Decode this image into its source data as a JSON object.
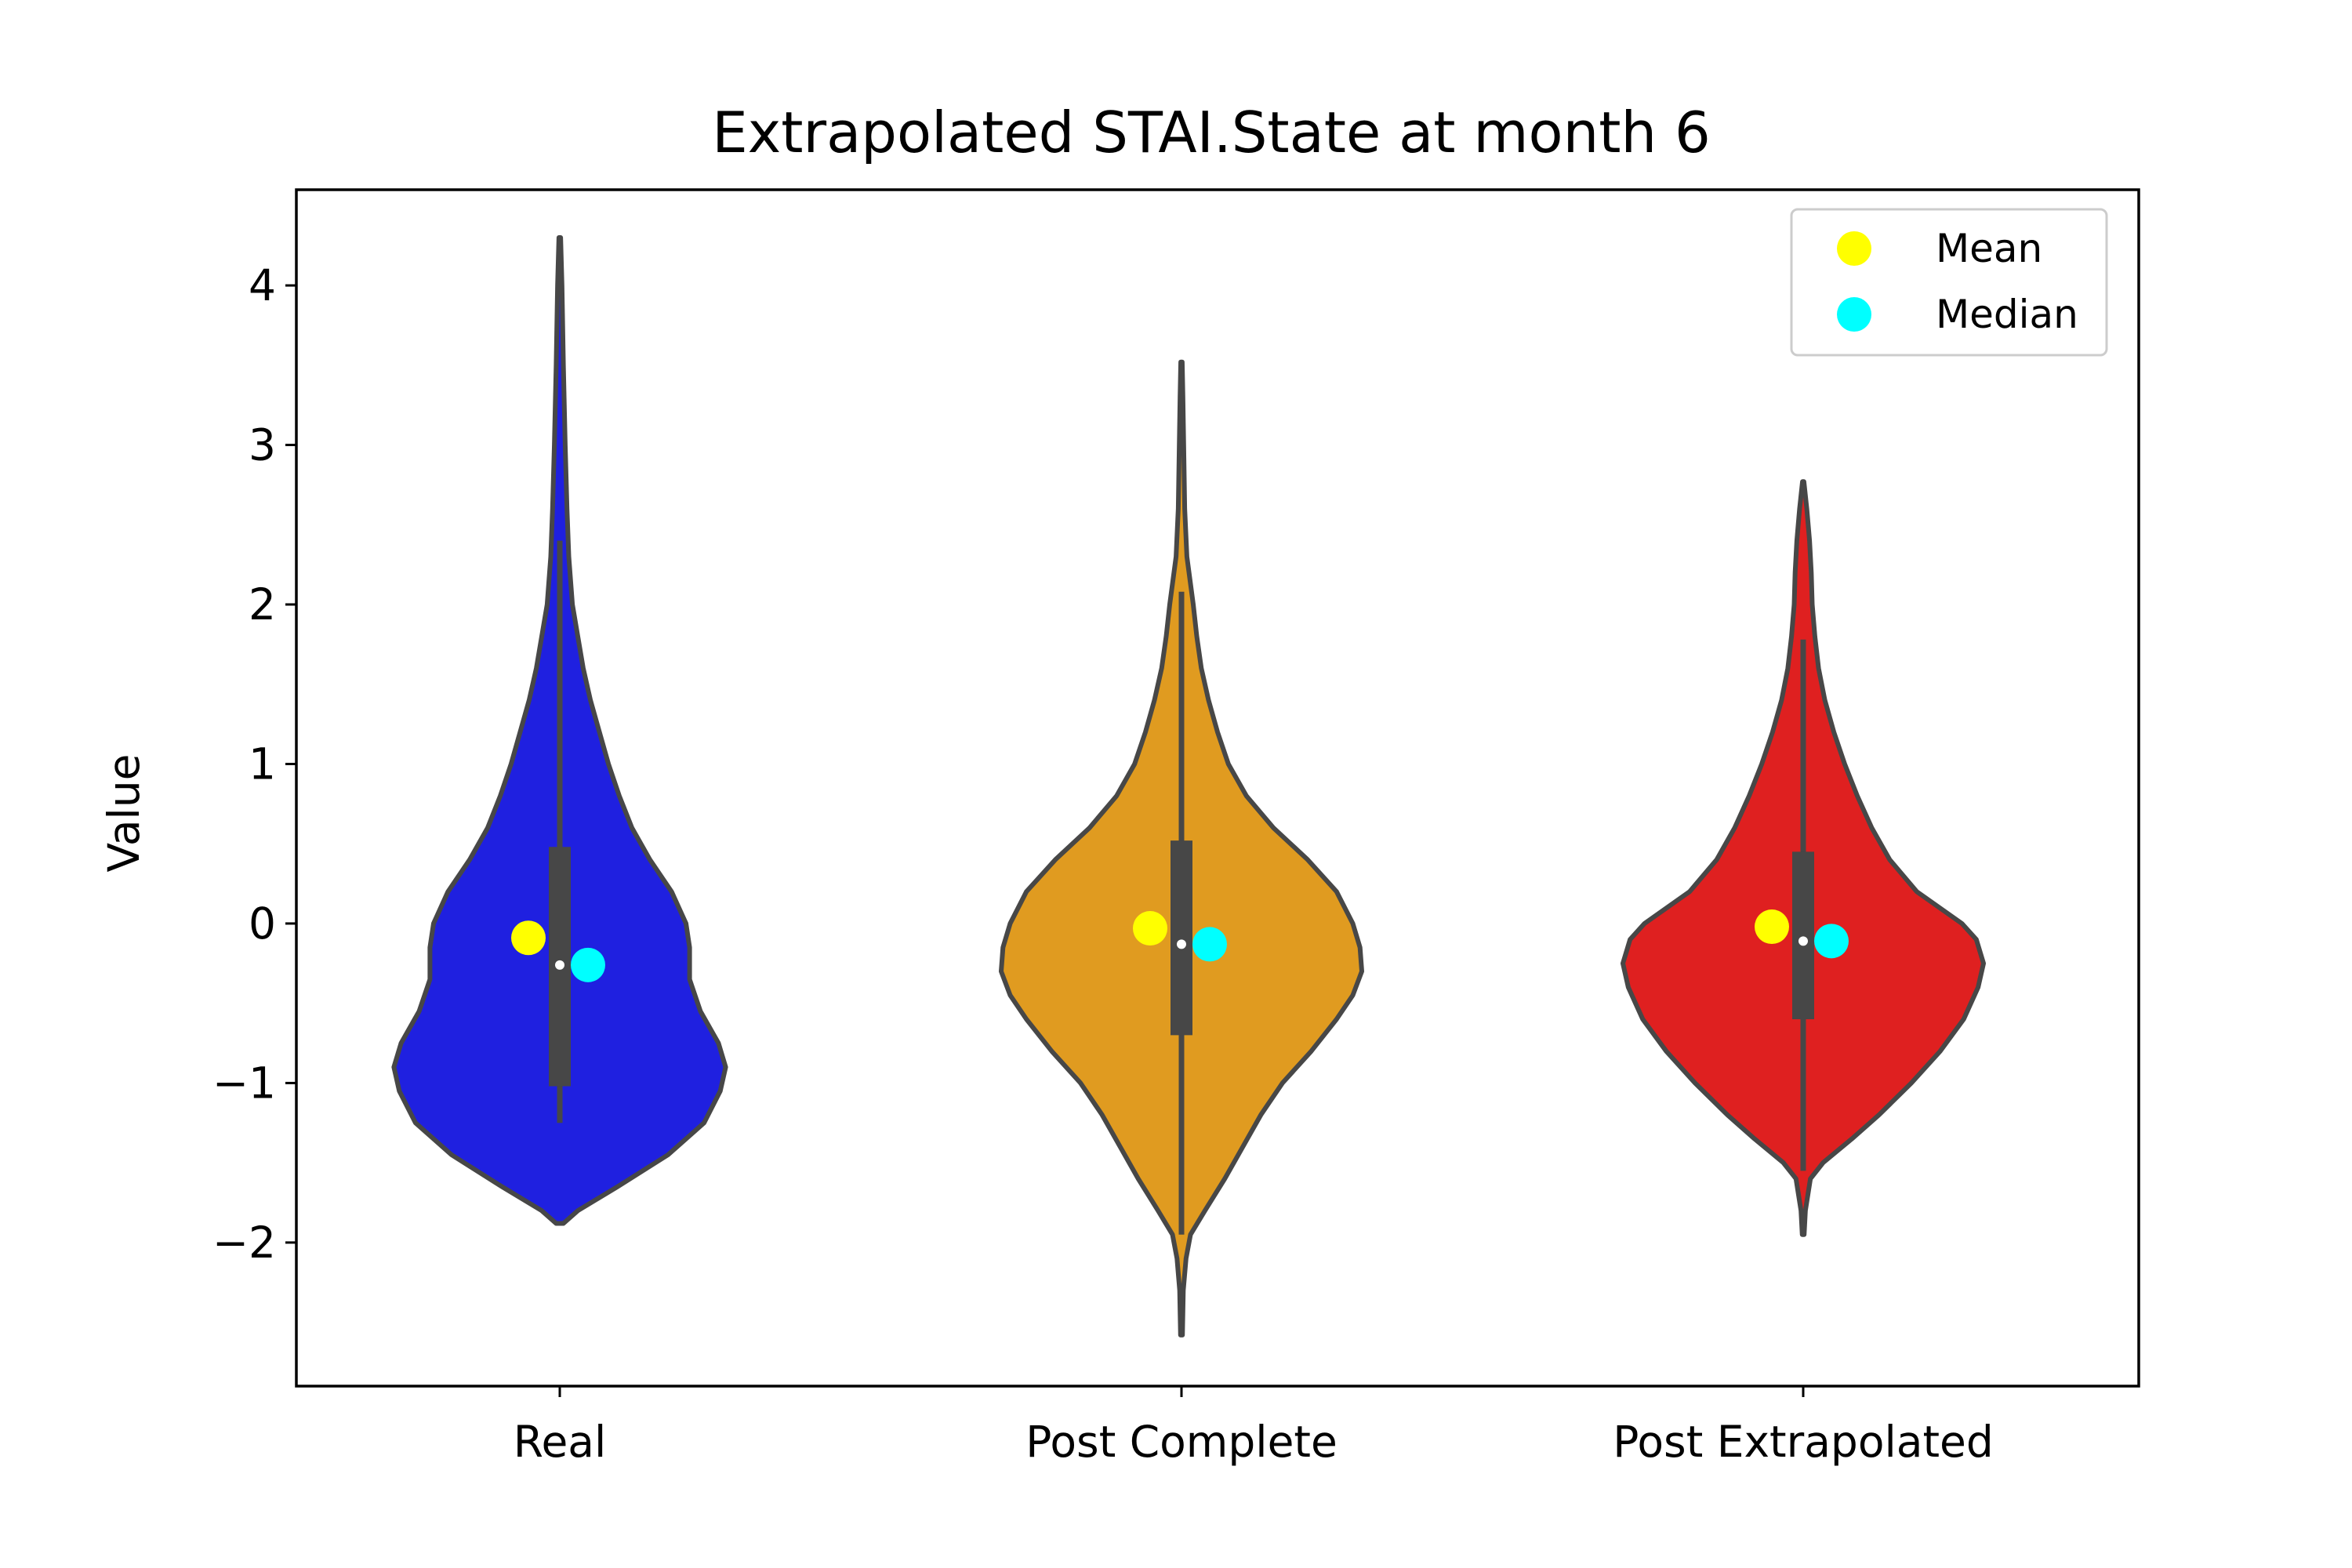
{
  "chart_data": {
    "type": "violin",
    "title": "Extrapolated STAI.State at month 6",
    "xlabel": "",
    "ylabel": "Value",
    "ylim": [
      -2.9,
      4.6
    ],
    "yticks": [
      {
        "value": 4,
        "label": "4"
      },
      {
        "value": 3,
        "label": "3"
      },
      {
        "value": 2,
        "label": "2"
      },
      {
        "value": 1,
        "label": "1"
      },
      {
        "value": 0,
        "label": "0"
      },
      {
        "value": -1,
        "label": "−1"
      },
      {
        "value": -2,
        "label": "−2"
      }
    ],
    "grid": false,
    "legend": {
      "position": "top-right",
      "entries": [
        {
          "label": "Mean",
          "color": "#ffff00"
        },
        {
          "label": "Median",
          "color": "#00ffff"
        }
      ]
    },
    "categories": [
      "Real",
      "Post Complete",
      "Post Extrapolated"
    ],
    "series": [
      {
        "category": "Real",
        "color": "#1f20e0",
        "min": -1.88,
        "max": 4.3,
        "whisker_low": -1.25,
        "whisker_high": 2.4,
        "q1": -1.02,
        "q3": 0.48,
        "median": -0.26,
        "mean": -0.09,
        "density": [
          [
            -1.88,
            0.02
          ],
          [
            -1.8,
            0.1
          ],
          [
            -1.65,
            0.32
          ],
          [
            -1.45,
            0.6
          ],
          [
            -1.25,
            0.8
          ],
          [
            -1.05,
            0.89
          ],
          [
            -0.9,
            0.92
          ],
          [
            -0.75,
            0.88
          ],
          [
            -0.55,
            0.78
          ],
          [
            -0.35,
            0.72
          ],
          [
            -0.15,
            0.72
          ],
          [
            0.0,
            0.7
          ],
          [
            0.2,
            0.62
          ],
          [
            0.4,
            0.5
          ],
          [
            0.6,
            0.4
          ],
          [
            0.8,
            0.33
          ],
          [
            1.0,
            0.27
          ],
          [
            1.2,
            0.22
          ],
          [
            1.4,
            0.17
          ],
          [
            1.6,
            0.13
          ],
          [
            1.8,
            0.1
          ],
          [
            2.0,
            0.07
          ],
          [
            2.3,
            0.05
          ],
          [
            2.6,
            0.04
          ],
          [
            3.0,
            0.03
          ],
          [
            3.5,
            0.02
          ],
          [
            4.0,
            0.012
          ],
          [
            4.3,
            0.005
          ]
        ]
      },
      {
        "category": "Post Complete",
        "color": "#e09b20",
        "min": -2.58,
        "max": 3.52,
        "whisker_low": -1.95,
        "whisker_high": 2.08,
        "q1": -0.7,
        "q3": 0.52,
        "median": -0.13,
        "mean": -0.03,
        "density": [
          [
            -2.58,
            0.005
          ],
          [
            -2.3,
            0.01
          ],
          [
            -2.1,
            0.025
          ],
          [
            -1.95,
            0.05
          ],
          [
            -1.8,
            0.13
          ],
          [
            -1.6,
            0.24
          ],
          [
            -1.4,
            0.34
          ],
          [
            -1.2,
            0.44
          ],
          [
            -1.0,
            0.56
          ],
          [
            -0.8,
            0.72
          ],
          [
            -0.6,
            0.86
          ],
          [
            -0.45,
            0.95
          ],
          [
            -0.3,
            1.0
          ],
          [
            -0.15,
            0.99
          ],
          [
            0.0,
            0.95
          ],
          [
            0.2,
            0.86
          ],
          [
            0.4,
            0.7
          ],
          [
            0.6,
            0.51
          ],
          [
            0.8,
            0.36
          ],
          [
            1.0,
            0.26
          ],
          [
            1.2,
            0.2
          ],
          [
            1.4,
            0.15
          ],
          [
            1.6,
            0.11
          ],
          [
            1.8,
            0.085
          ],
          [
            2.0,
            0.065
          ],
          [
            2.3,
            0.03
          ],
          [
            2.6,
            0.018
          ],
          [
            3.0,
            0.012
          ],
          [
            3.3,
            0.008
          ],
          [
            3.52,
            0.004
          ]
        ]
      },
      {
        "category": "Post Extrapolated",
        "color": "#df2020",
        "min": -1.95,
        "max": 2.77,
        "whisker_low": -1.55,
        "whisker_high": 1.78,
        "q1": -0.6,
        "q3": 0.45,
        "median": -0.11,
        "mean": -0.02,
        "density": [
          [
            -1.95,
            0.005
          ],
          [
            -1.8,
            0.012
          ],
          [
            -1.6,
            0.04
          ],
          [
            -1.5,
            0.11
          ],
          [
            -1.35,
            0.27
          ],
          [
            -1.2,
            0.42
          ],
          [
            -1.0,
            0.6
          ],
          [
            -0.8,
            0.76
          ],
          [
            -0.6,
            0.89
          ],
          [
            -0.4,
            0.97
          ],
          [
            -0.25,
            1.0
          ],
          [
            -0.1,
            0.96
          ],
          [
            0.0,
            0.88
          ],
          [
            0.2,
            0.63
          ],
          [
            0.4,
            0.48
          ],
          [
            0.6,
            0.38
          ],
          [
            0.8,
            0.3
          ],
          [
            1.0,
            0.23
          ],
          [
            1.2,
            0.17
          ],
          [
            1.4,
            0.12
          ],
          [
            1.6,
            0.085
          ],
          [
            1.8,
            0.065
          ],
          [
            2.0,
            0.05
          ],
          [
            2.2,
            0.045
          ],
          [
            2.4,
            0.035
          ],
          [
            2.6,
            0.02
          ],
          [
            2.77,
            0.004
          ]
        ]
      }
    ]
  }
}
